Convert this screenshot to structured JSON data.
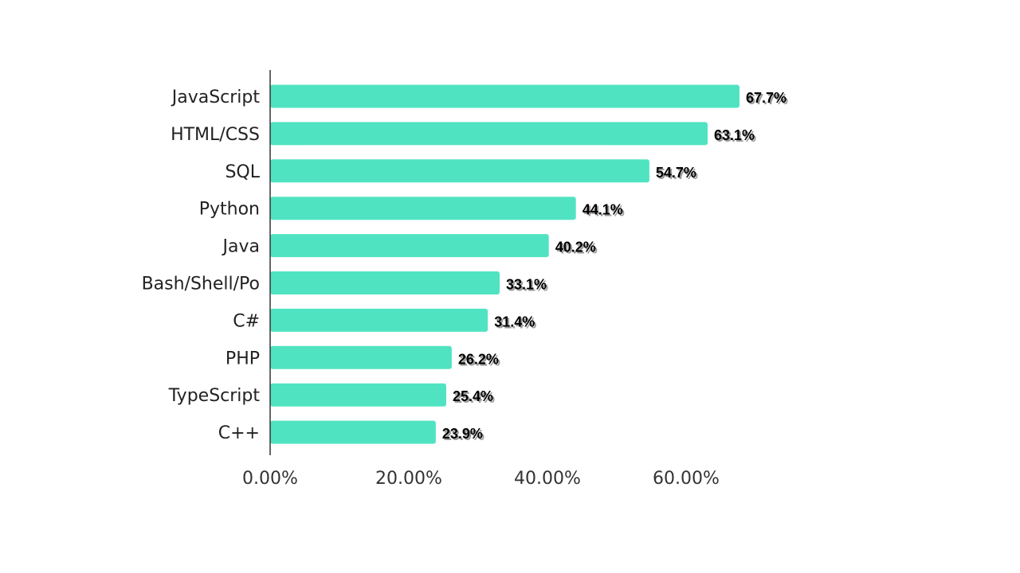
{
  "chart_data": {
    "type": "bar",
    "orientation": "horizontal",
    "categories": [
      "JavaScript",
      "HTML/CSS",
      "SQL",
      "Python",
      "Java",
      "Bash/Shell/Po",
      "C#",
      "PHP",
      "TypeScript",
      "C++"
    ],
    "values": [
      67.7,
      63.1,
      54.7,
      44.1,
      40.2,
      33.1,
      31.4,
      26.2,
      25.4,
      23.9
    ],
    "value_labels": [
      "67.7%",
      "63.1%",
      "54.7%",
      "44.1%",
      "40.2%",
      "33.1%",
      "31.4%",
      "26.2%",
      "25.4%",
      "23.9%"
    ],
    "xticks": [
      0,
      20,
      40,
      60
    ],
    "xtick_labels": [
      "0.00%",
      "20.00%",
      "40.00%",
      "60.00%"
    ],
    "xlim": [
      0,
      80
    ],
    "grid": false,
    "legend": "none",
    "bar_color": "#50E3C2",
    "axis_color": "#333333"
  }
}
